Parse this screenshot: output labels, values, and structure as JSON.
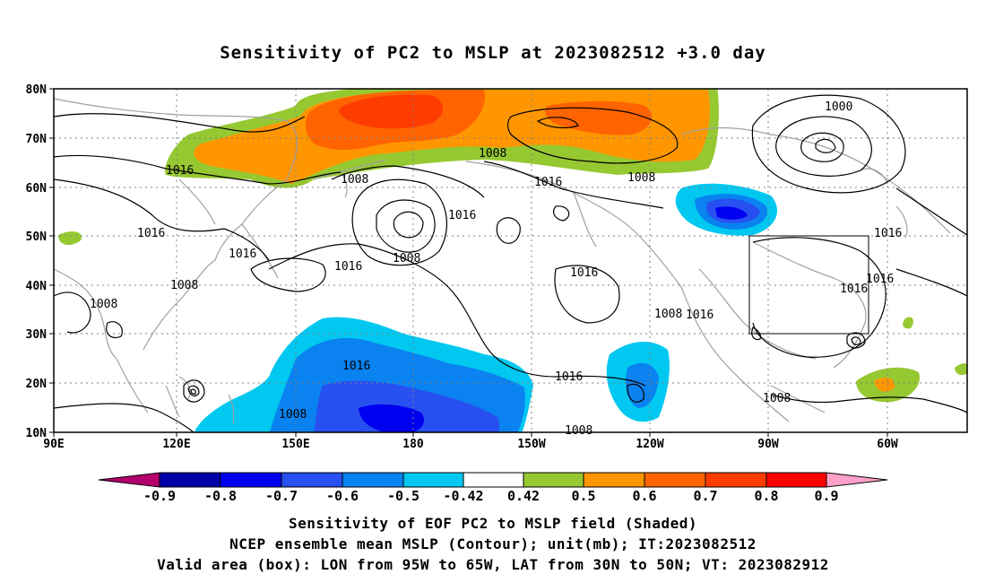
{
  "title": "Sensitivity of PC2 to MSLP at 2023082512 +3.0 day",
  "map": {
    "lat_ticks": [
      "80N",
      "70N",
      "60N",
      "50N",
      "40N",
      "30N",
      "20N",
      "10N"
    ],
    "lon_ticks": [
      "90E",
      "120E",
      "150E",
      "180",
      "150W",
      "120W",
      "90W",
      "60W"
    ],
    "valid_box": {
      "lon": [
        "95W",
        "65W"
      ],
      "lat": [
        "30N",
        "50N"
      ]
    },
    "contour_labels": [
      "1016",
      "1008",
      "1000",
      "1008",
      "1016",
      "1016",
      "1016",
      "1016",
      "1008",
      "1016",
      "1016",
      "1008",
      "1016",
      "1008",
      "1016",
      "1016",
      "1008",
      "1008",
      "1008",
      "1016",
      "1016",
      "1008",
      "1016",
      "1008",
      "1016",
      "1008"
    ],
    "shading_colors": {
      "neg_0_9": "#b4006e",
      "neg_0_8_to_0_9": "#0000a8",
      "neg_0_7_to_0_8": "#0000f0",
      "neg_0_6_to_0_7": "#2850f0",
      "neg_0_5_to_0_6": "#0a82f0",
      "neg_0_42_to_0_5": "#00c8f0",
      "pos_0_42_to_0_5": "#96c832",
      "pos_0_5_to_0_6": "#ff9600",
      "pos_0_6_to_0_7": "#ff6400",
      "pos_0_7_to_0_8": "#ff3c00",
      "pos_0_8_to_0_9": "#ff0000",
      "pos_0_9": "#ffa0c8"
    },
    "coastline_color": "#a0a0a0",
    "grid": "dotted"
  },
  "colorbar": {
    "labels": [
      "-0.9",
      "-0.8",
      "-0.7",
      "-0.6",
      "-0.5",
      "-0.42",
      "0.42",
      "0.5",
      "0.6",
      "0.7",
      "0.8",
      "0.9"
    ],
    "colors": [
      "#b4006e",
      "#0000a8",
      "#0000f0",
      "#2850f0",
      "#0a82f0",
      "#00c8f0",
      "#ffffff",
      "#96c832",
      "#ff9600",
      "#ff6400",
      "#ff3c00",
      "#ff0000",
      "#ffa0c8"
    ]
  },
  "caption_line1": "Sensitivity of EOF PC2 to MSLP field (Shaded)",
  "caption_line2": "NCEP ensemble mean MSLP (Contour); unit(mb); IT:2023082512",
  "caption_line3": "Valid area (box): LON from 95W to 65W, LAT from 30N to 50N; VT: 2023082912"
}
